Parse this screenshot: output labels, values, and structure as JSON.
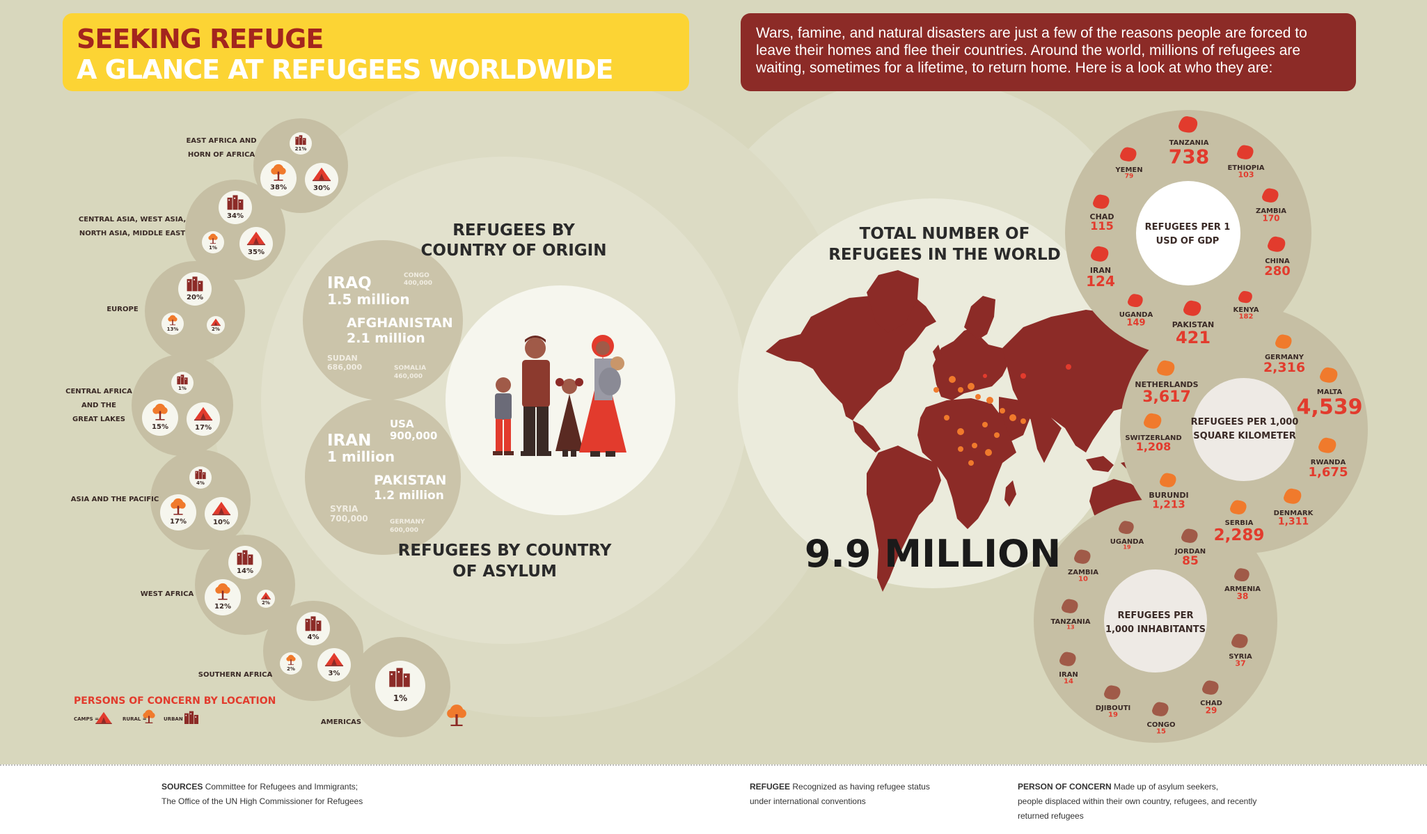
{
  "header": {
    "title_line1": "SEEKING REFUGE",
    "title_line2": "A GLANCE AT REFUGEES WORLDWIDE",
    "intro": "Wars, famine, and natural disasters are just a few of the reasons people are forced to leave their homes and flee their countries. Around the world, millions of refugees are waiting, sometimes for a lifetime, to return home. Here is a look at who they are:"
  },
  "colors": {
    "background": "#d8d7bd",
    "title_bg": "#fcd434",
    "intro_bg": "#8c2b27",
    "red": "#e23b2d",
    "dark_red": "#8c2b27",
    "orange": "#f07a2c",
    "brown": "#a05a48",
    "circle": "#c6bfa4"
  },
  "locations": {
    "legend_title": "PERSONS OF CONCERN BY LOCATION",
    "legend_camps": "CAMPS =",
    "legend_rural": "RURAL =",
    "legend_urban": "URBAN =",
    "regions": [
      {
        "name": "EAST AFRICA AND HORN OF AFRICA",
        "urban": "21%",
        "rural": "38%",
        "camps": "30%"
      },
      {
        "name": "CENTRAL ASIA, WEST ASIA, NORTH ASIA, MIDDLE EAST",
        "urban": "34%",
        "rural": "1%",
        "camps": "35%"
      },
      {
        "name": "EUROPE",
        "urban": "20%",
        "rural": "13%",
        "camps": "2%"
      },
      {
        "name": "CENTRAL AFRICA AND THE GREAT LAKES",
        "urban": "1%",
        "rural": "15%",
        "camps": "17%"
      },
      {
        "name": "ASIA AND THE PACIFIC",
        "urban": "4%",
        "rural": "17%",
        "camps": "10%"
      },
      {
        "name": "WEST AFRICA",
        "urban": "14%",
        "rural": "12%",
        "camps": "2%"
      },
      {
        "name": "SOUTHERN AFRICA",
        "urban": "4%",
        "rural": "2%",
        "camps": "3%"
      },
      {
        "name": "AMERICAS",
        "urban": "1%"
      }
    ]
  },
  "origin": {
    "title": "REFUGEES BY COUNTRY OF ORIGIN",
    "items": [
      {
        "country": "IRAQ",
        "value": "1.5 million"
      },
      {
        "country": "CONGO",
        "value": "400,000"
      },
      {
        "country": "AFGHANISTAN",
        "value": "2.1 million"
      },
      {
        "country": "SUDAN",
        "value": "686,000"
      },
      {
        "country": "SOMALIA",
        "value": "460,000"
      }
    ]
  },
  "asylum": {
    "title": "REFUGEES BY COUNTRY OF ASYLUM",
    "items": [
      {
        "country": "IRAN",
        "value": "1 million"
      },
      {
        "country": "USA",
        "value": "900,000"
      },
      {
        "country": "PAKISTAN",
        "value": "1.2 million"
      },
      {
        "country": "SYRIA",
        "value": "700,000"
      },
      {
        "country": "GERMANY",
        "value": "600,000"
      }
    ]
  },
  "total": {
    "title": "TOTAL NUMBER OF REFUGEES IN THE WORLD",
    "value": "9.9 MILLION"
  },
  "gdp": {
    "title": "REFUGEES PER 1 USD OF GDP",
    "items": [
      {
        "country": "TANZANIA",
        "value": "738"
      },
      {
        "country": "ETHIOPIA",
        "value": "103"
      },
      {
        "country": "ZAMBIA",
        "value": "170"
      },
      {
        "country": "CHINA",
        "value": "280"
      },
      {
        "country": "KENYA",
        "value": "182"
      },
      {
        "country": "PAKISTAN",
        "value": "421"
      },
      {
        "country": "UGANDA",
        "value": "149"
      },
      {
        "country": "IRAN",
        "value": "124"
      },
      {
        "country": "CHAD",
        "value": "115"
      },
      {
        "country": "YEMEN",
        "value": "79"
      }
    ]
  },
  "sqkm": {
    "title": "REFUGEES PER 1,000 SQUARE KILOMETER",
    "items": [
      {
        "country": "GERMANY",
        "value": "2,316"
      },
      {
        "country": "MALTA",
        "value": "4,539"
      },
      {
        "country": "RWANDA",
        "value": "1,675"
      },
      {
        "country": "DENMARK",
        "value": "1,311"
      },
      {
        "country": "SERBIA",
        "value": "2,289"
      },
      {
        "country": "BURUNDI",
        "value": "1,213"
      },
      {
        "country": "SWITZERLAND",
        "value": "1,208"
      },
      {
        "country": "NETHERLANDS",
        "value": "3,617"
      }
    ]
  },
  "inhabitants": {
    "title": "REFUGEES PER 1,000 INHABITANTS",
    "items": [
      {
        "country": "JORDAN",
        "value": "85"
      },
      {
        "country": "ARMENIA",
        "value": "38"
      },
      {
        "country": "SYRIA",
        "value": "37"
      },
      {
        "country": "CHAD",
        "value": "29"
      },
      {
        "country": "CONGO",
        "value": "15"
      },
      {
        "country": "DJIBOUTI",
        "value": "19"
      },
      {
        "country": "IRAN",
        "value": "14"
      },
      {
        "country": "TANZANIA",
        "value": "13"
      },
      {
        "country": "ZAMBIA",
        "value": "10"
      },
      {
        "country": "UGANDA",
        "value": "19"
      }
    ]
  },
  "footer": {
    "sources_label": "SOURCES",
    "sources_line1": "Committee for Refugees and Immigrants;",
    "sources_line2": "The Office of the UN High Commissioner for Refugees",
    "refugee_label": "REFUGEE",
    "refugee_line1": "Recognized as having refugee status",
    "refugee_line2": "under international conventions",
    "concern_label": "PERSON OF CONCERN",
    "concern_line1": "Made up of asylum seekers,",
    "concern_line2": "people displaced within their own country, refugees, and recently",
    "concern_line3": "returned refugees"
  }
}
